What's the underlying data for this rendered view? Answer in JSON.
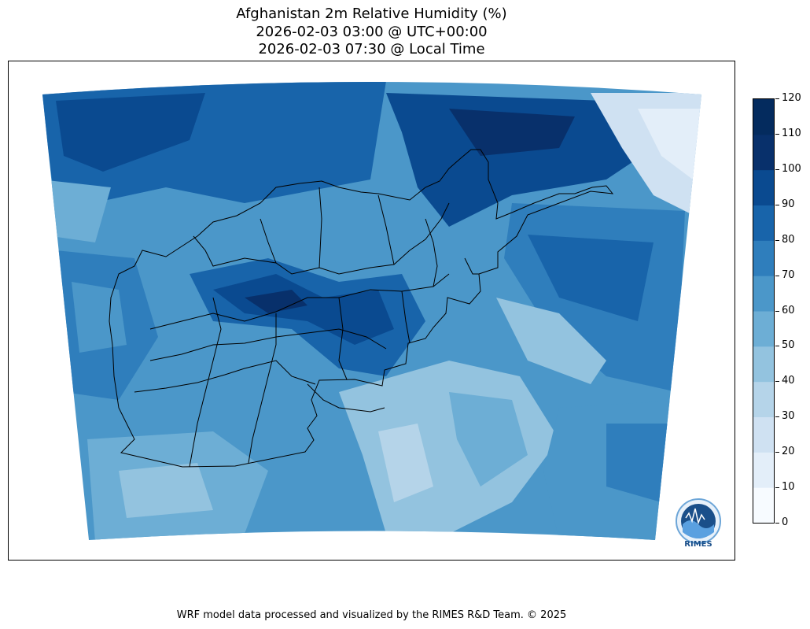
{
  "title": {
    "line1": "Afghanistan 2m Relative Humidity (%)",
    "line2": "2026-02-03 03:00 @ UTC+00:00",
    "line3": "2026-02-03 07:30 @ Local Time"
  },
  "colorbar": {
    "ticks": [
      "0",
      "10",
      "20",
      "30",
      "40",
      "50",
      "60",
      "70",
      "80",
      "90",
      "100",
      "110",
      "120"
    ],
    "colors": [
      "#f7fbff",
      "#e3eef9",
      "#cfe1f2",
      "#b5d4e9",
      "#93c3df",
      "#6daed5",
      "#4b97c9",
      "#2f7ebc",
      "#1864aa",
      "#0a4a90",
      "#08306b",
      "#042b5e"
    ]
  },
  "logo": {
    "text": "RIMES"
  },
  "footer": {
    "text": "WRF model data processed and visualized by the RIMES R&D Team. © 2025"
  }
}
